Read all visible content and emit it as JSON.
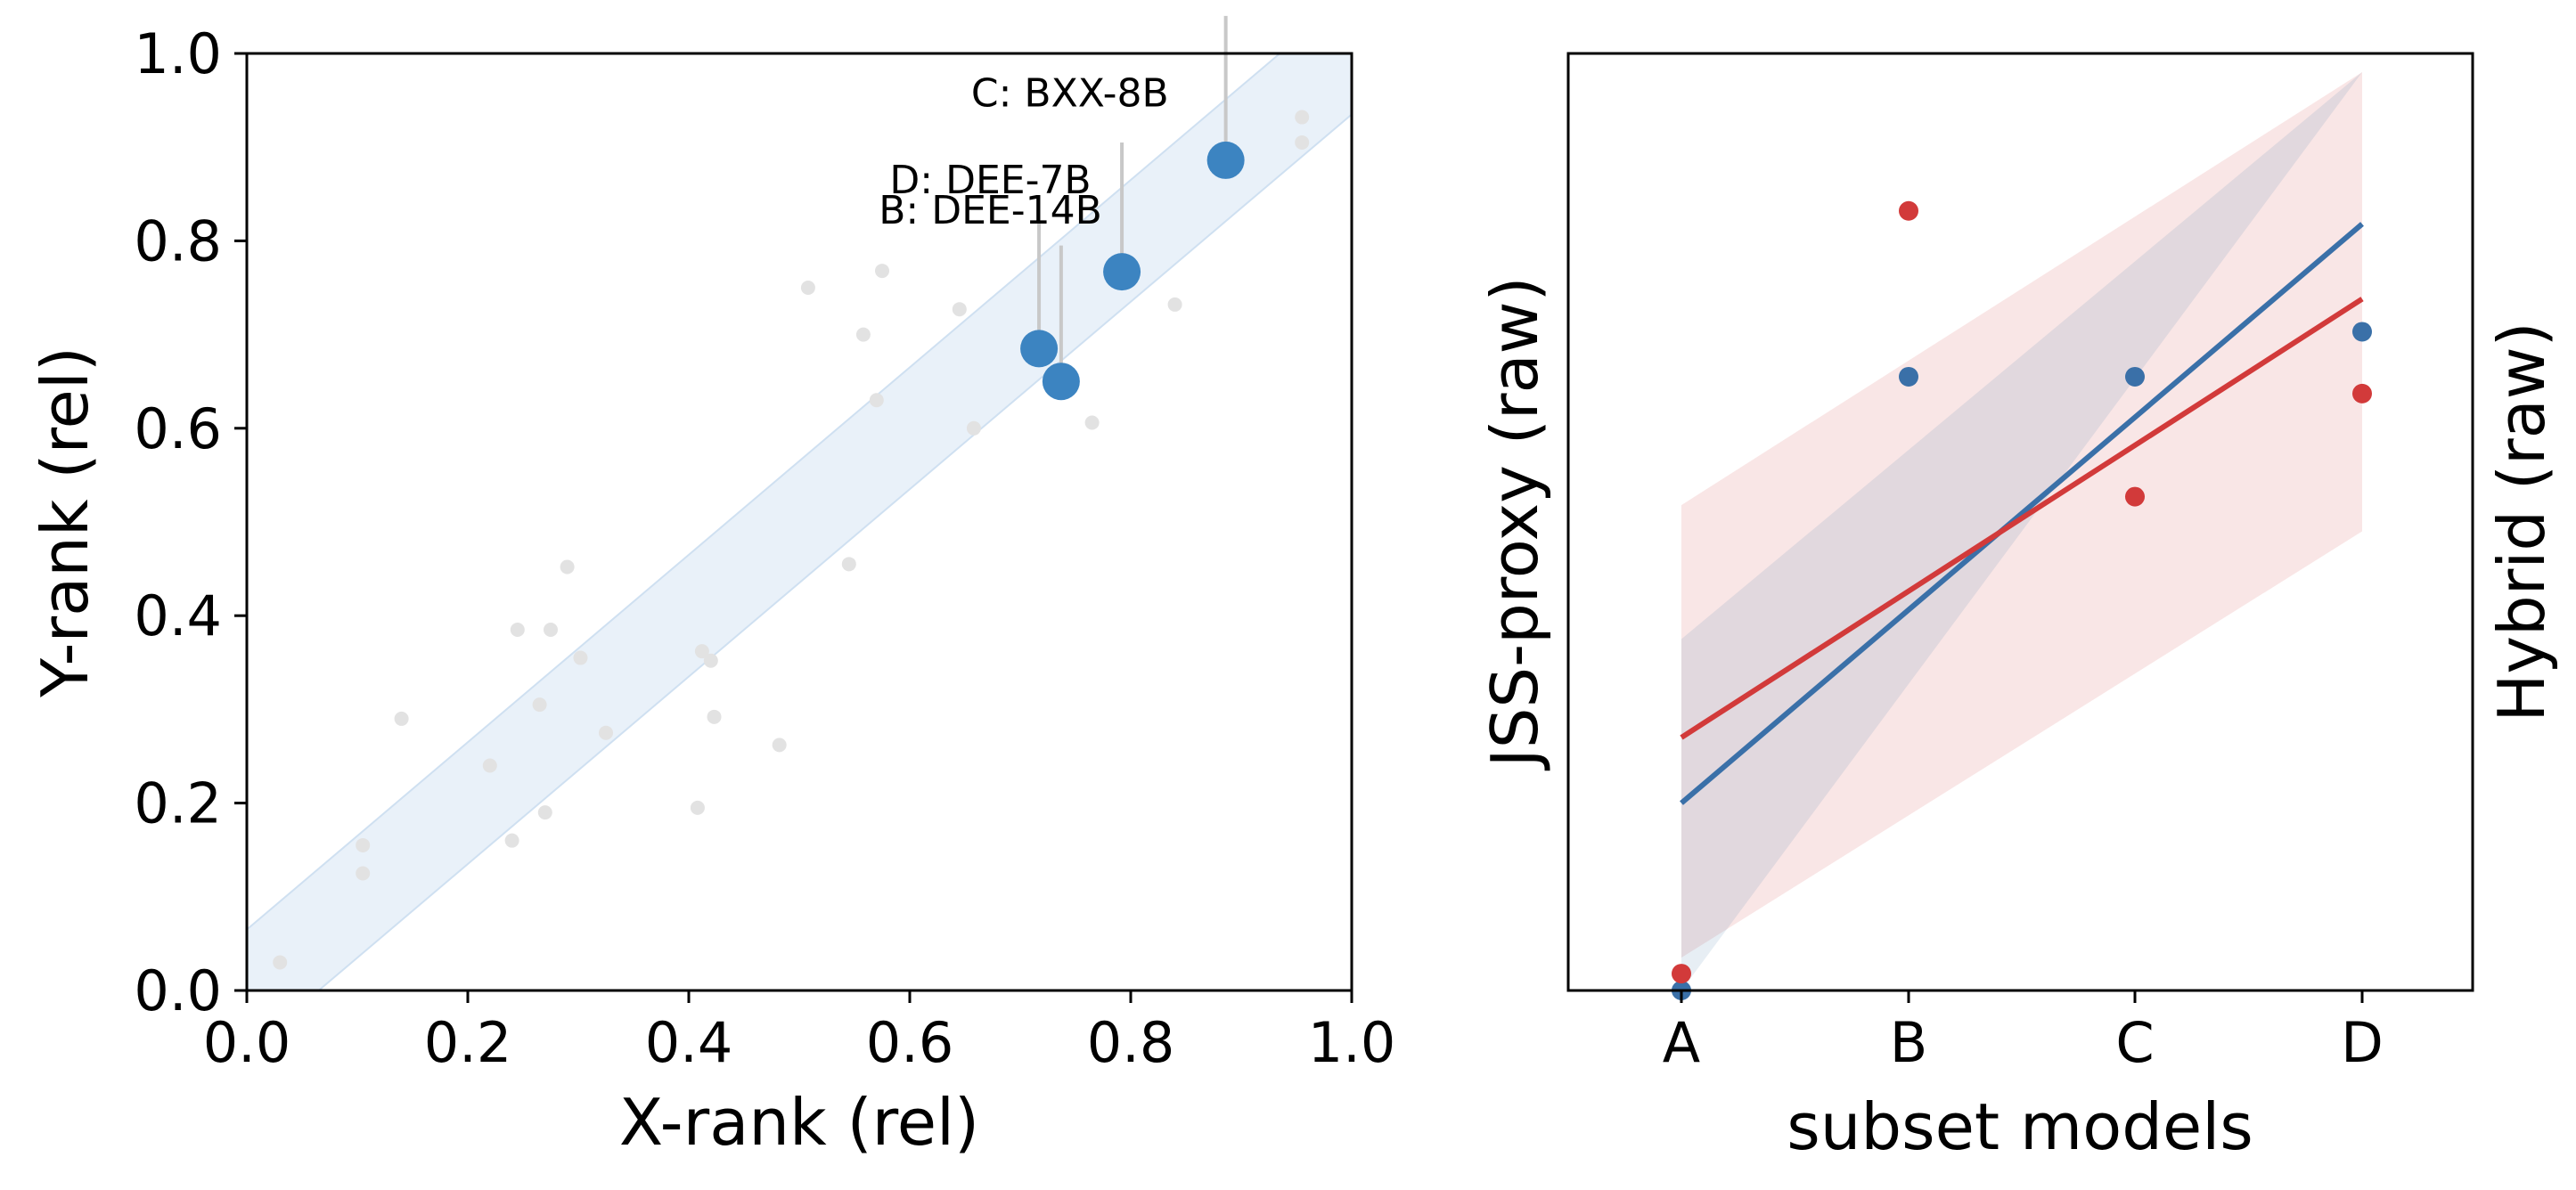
{
  "chart_data": [
    {
      "type": "scatter",
      "xlabel": "X-rank (rel)",
      "ylabel": "Y-rank (rel)",
      "xlim": [
        0.0,
        1.0
      ],
      "ylim": [
        0.0,
        1.0
      ],
      "xticks": [
        "0.0",
        "0.2",
        "0.4",
        "0.6",
        "0.8",
        "1.0"
      ],
      "yticks": [
        "0.0",
        "0.2",
        "0.4",
        "0.6",
        "0.8",
        "1.0"
      ],
      "grid": false,
      "band": {
        "offset": 0.065,
        "color": "#cfe0f1"
      },
      "background_points": [
        {
          "x": 0.03,
          "y": 0.03
        },
        {
          "x": 0.105,
          "y": 0.155
        },
        {
          "x": 0.105,
          "y": 0.125
        },
        {
          "x": 0.14,
          "y": 0.29
        },
        {
          "x": 0.22,
          "y": 0.24
        },
        {
          "x": 0.24,
          "y": 0.16
        },
        {
          "x": 0.245,
          "y": 0.385
        },
        {
          "x": 0.265,
          "y": 0.305
        },
        {
          "x": 0.27,
          "y": 0.19
        },
        {
          "x": 0.275,
          "y": 0.385
        },
        {
          "x": 0.29,
          "y": 0.452
        },
        {
          "x": 0.302,
          "y": 0.355
        },
        {
          "x": 0.325,
          "y": 0.275
        },
        {
          "x": 0.408,
          "y": 0.195
        },
        {
          "x": 0.412,
          "y": 0.362
        },
        {
          "x": 0.42,
          "y": 0.352
        },
        {
          "x": 0.423,
          "y": 0.292
        },
        {
          "x": 0.482,
          "y": 0.262
        },
        {
          "x": 0.508,
          "y": 0.75
        },
        {
          "x": 0.545,
          "y": 0.455
        },
        {
          "x": 0.558,
          "y": 0.7
        },
        {
          "x": 0.57,
          "y": 0.63
        },
        {
          "x": 0.575,
          "y": 0.768
        },
        {
          "x": 0.645,
          "y": 0.727
        },
        {
          "x": 0.658,
          "y": 0.6
        },
        {
          "x": 0.765,
          "y": 0.606
        },
        {
          "x": 0.84,
          "y": 0.732
        },
        {
          "x": 0.955,
          "y": 0.932
        },
        {
          "x": 0.955,
          "y": 0.905
        }
      ],
      "highlight_points": [
        {
          "label": "C: BXX-8B",
          "x": 0.886,
          "y": 0.886
        },
        {
          "label": "D: DEE-7B",
          "x": 0.792,
          "y": 0.767
        },
        {
          "label": "B: DEE-14B",
          "x": 0.717,
          "y": 0.685
        },
        {
          "label": "",
          "x": 0.737,
          "y": 0.65
        }
      ],
      "label_texts": [
        "C: BXX-8B",
        "D: DEE-7B",
        "B: DEE-14B"
      ],
      "colors": {
        "highlight": "#3c84c1",
        "background": "#e2e2e2",
        "leader": "#c8c8c8"
      }
    },
    {
      "type": "scatter",
      "xlabel": "subset models",
      "ylabel_left": "JSS-proxy (raw)",
      "ylabel_right": "Hybrid (raw)",
      "categories": [
        "A",
        "B",
        "C",
        "D"
      ],
      "ylim": [
        0.0,
        1.0
      ],
      "series": [
        {
          "name": "",
          "color": "#3a70a8",
          "points": [
            0.0,
            0.655,
            0.655,
            0.703
          ],
          "fit": [
            0.2,
            0.818
          ],
          "band_lower": [
            0.0,
            0.98
          ],
          "band_upper": [
            0.375,
            0.98
          ]
        },
        {
          "name": "",
          "color": "#d23a3a",
          "points": [
            0.018,
            0.832,
            0.527,
            0.637
          ],
          "fit": [
            0.27,
            0.738
          ],
          "band_lower": [
            0.035,
            0.49
          ],
          "band_upper": [
            0.518,
            0.98
          ]
        }
      ]
    }
  ]
}
